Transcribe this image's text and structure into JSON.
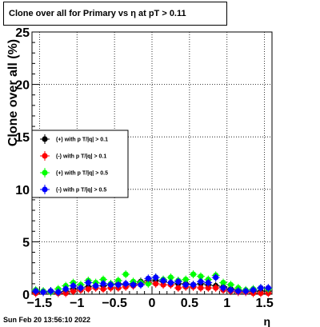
{
  "title": "Clone  over all for Primary vs   η at pT > 0.11",
  "footer": "Sun Feb 20 13:56:10 2022",
  "chart_data": {
    "type": "scatter",
    "title": "Clone  over all for Primary vs   η at pT > 0.11",
    "xlabel": "η",
    "ylabel": "Clone  over all (%)",
    "xlim": [
      -1.6,
      1.6
    ],
    "ylim": [
      0,
      25
    ],
    "grid": true,
    "legend_position": "middle-left",
    "x_ticks": [
      -1.5,
      -1,
      -0.5,
      0,
      0.5,
      1,
      1.5
    ],
    "x_tick_labels": [
      "−1.5",
      "−1",
      "−0.5",
      "0",
      "0.5",
      "1",
      "1.5"
    ],
    "y_ticks": [
      0,
      5,
      10,
      15,
      20,
      25
    ],
    "y_tick_labels": [
      "0",
      "5",
      "10",
      "15",
      "20",
      "25"
    ],
    "x": [
      -1.55,
      -1.45,
      -1.35,
      -1.25,
      -1.15,
      -1.05,
      -0.95,
      -0.85,
      -0.75,
      -0.65,
      -0.55,
      -0.45,
      -0.35,
      -0.25,
      -0.15,
      -0.05,
      0.05,
      0.15,
      0.25,
      0.35,
      0.45,
      0.55,
      0.65,
      0.75,
      0.85,
      0.95,
      1.05,
      1.15,
      1.25,
      1.35,
      1.45,
      1.55
    ],
    "series": [
      {
        "name": "(+) with p T/|q| > 0.1",
        "color": "#000000",
        "values": [
          0.2,
          0.2,
          0.3,
          0.2,
          0.3,
          0.5,
          0.6,
          0.7,
          0.8,
          0.8,
          0.9,
          1.0,
          0.9,
          1.0,
          1.2,
          1.3,
          1.3,
          1.2,
          1.1,
          1.0,
          1.0,
          0.9,
          1.0,
          0.9,
          0.8,
          0.7,
          0.5,
          0.4,
          0.3,
          0.3,
          0.3,
          0.3
        ]
      },
      {
        "name": "(-) with p T/|q| > 0.1",
        "color": "#ff0000",
        "values": [
          0.1,
          0.2,
          0.2,
          0.1,
          0.1,
          0.3,
          0.4,
          0.5,
          0.6,
          0.5,
          0.6,
          0.6,
          0.7,
          0.8,
          1.0,
          1.1,
          1.0,
          0.9,
          0.9,
          0.6,
          0.7,
          0.7,
          0.6,
          0.6,
          0.6,
          0.4,
          0.3,
          0.2,
          0.2,
          0.1,
          0.1,
          0.1
        ]
      },
      {
        "name": "(+) with p T/|q| > 0.5",
        "color": "#00ff00",
        "values": [
          0.4,
          0.3,
          0.2,
          0.5,
          0.8,
          1.1,
          0.9,
          1.3,
          1.1,
          1.4,
          1.0,
          1.3,
          1.9,
          1.2,
          1.1,
          1.0,
          1.6,
          1.4,
          1.6,
          1.3,
          1.4,
          1.9,
          1.7,
          1.4,
          1.8,
          1.1,
          0.9,
          0.6,
          0.4,
          0.5,
          0.6,
          0.5
        ]
      },
      {
        "name": "(-) with p T/|q| > 0.5",
        "color": "#0000ff",
        "values": [
          0.3,
          0.2,
          0.3,
          0.2,
          0.5,
          0.8,
          0.6,
          1.1,
          0.8,
          1.0,
          0.9,
          0.9,
          1.0,
          0.9,
          0.9,
          1.5,
          1.6,
          1.3,
          1.1,
          1.2,
          0.9,
          0.9,
          1.2,
          1.1,
          1.6,
          0.6,
          0.4,
          0.3,
          0.3,
          0.4,
          0.6,
          0.6
        ]
      }
    ]
  }
}
